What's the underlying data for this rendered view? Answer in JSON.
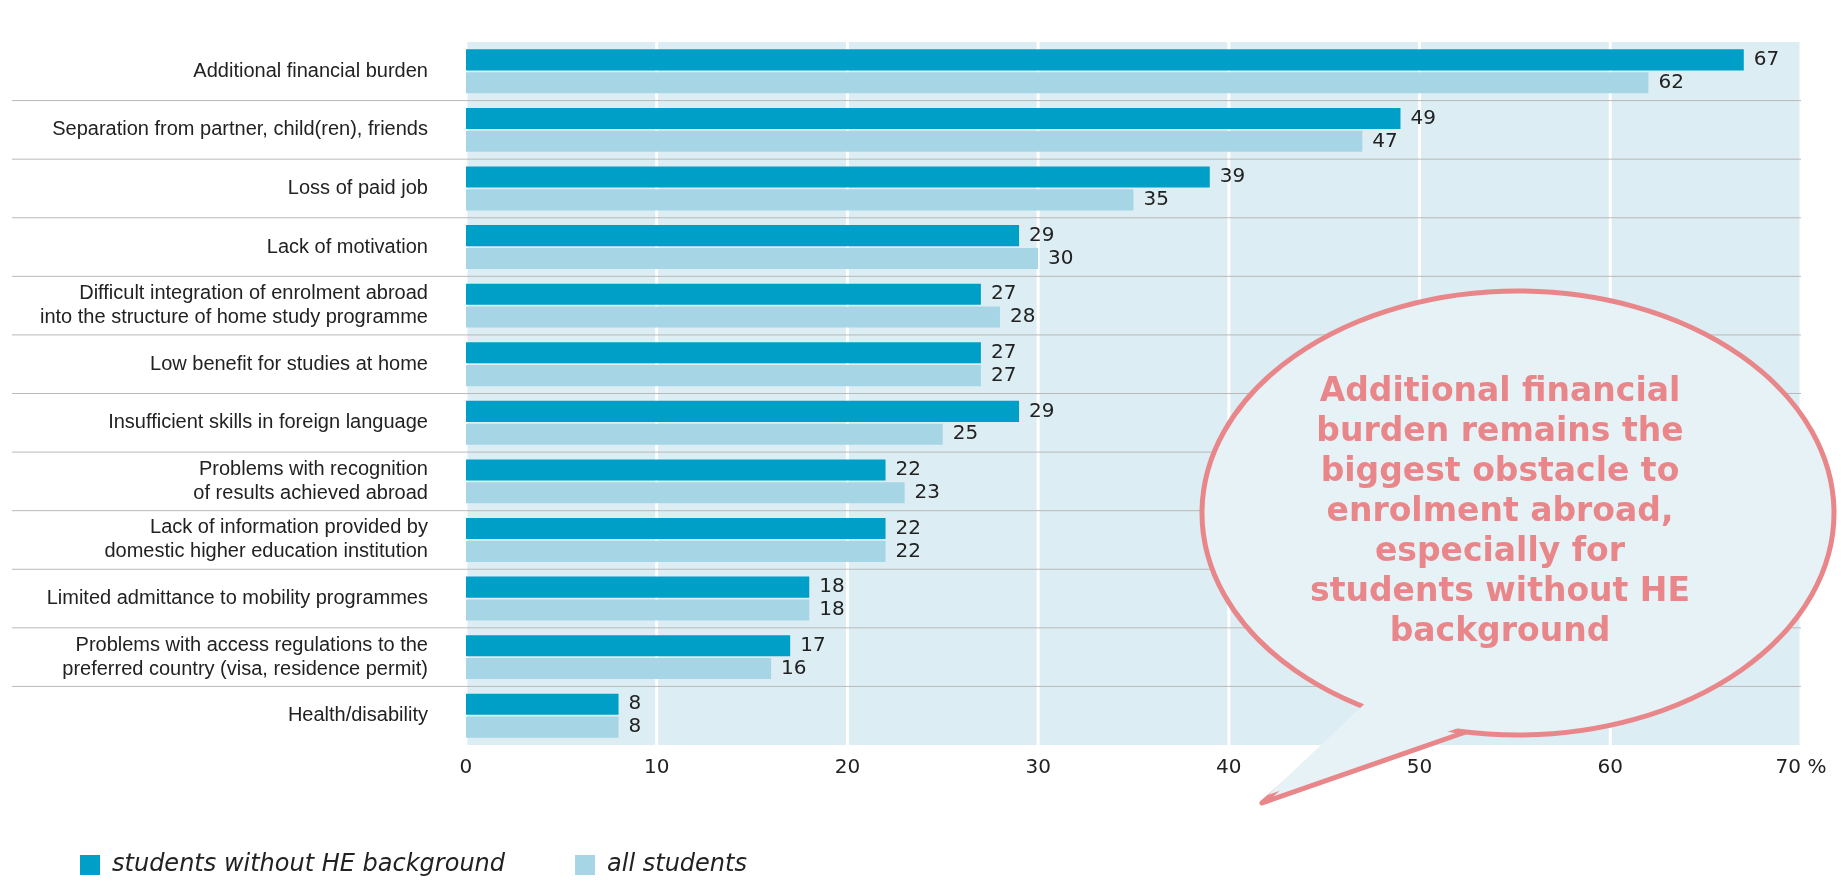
{
  "chart_data": {
    "type": "bar",
    "orientation": "horizontal",
    "categories": [
      "Additional financial burden",
      "Separation from partner, child(ren), friends",
      "Loss of paid job",
      "Lack of motivation",
      "Difficult integration of enrolment abroad\ninto the structure of home study programme",
      "Low benefit for studies at home",
      "Insufficient skills in foreign language",
      "Problems with recognition\nof results achieved abroad",
      "Lack of information provided by\ndomestic higher education institution",
      "Limited admittance to mobility programmes",
      "Problems with access regulations to the\npreferred country (visa, residence permit)",
      "Health/disability"
    ],
    "series": [
      {
        "name": "students without HE background",
        "color": "#009fc7",
        "values": [
          67,
          49,
          39,
          29,
          27,
          27,
          29,
          22,
          22,
          18,
          17,
          8
        ]
      },
      {
        "name": "all students",
        "color": "#a6d6e6",
        "values": [
          62,
          47,
          35,
          30,
          28,
          27,
          25,
          23,
          22,
          18,
          16,
          8
        ]
      }
    ],
    "xlim": [
      0,
      70
    ],
    "xticks": [
      0,
      10,
      20,
      30,
      40,
      50,
      60,
      {
        "value": 70,
        "label": "70 %"
      }
    ],
    "grid": true,
    "legend": "bottom left",
    "data_labels": true,
    "annotations": [
      "Additional financial burden remains the biggest obstacle to enrolment abroad, especially for students without HE background"
    ]
  }
}
